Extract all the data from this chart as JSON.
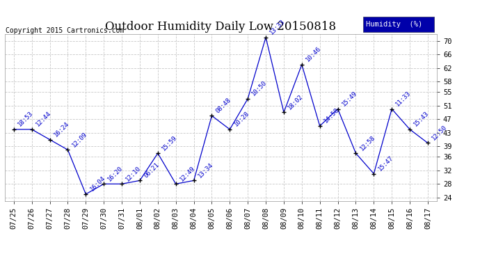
{
  "title": "Outdoor Humidity Daily Low 20150818",
  "copyright": "Copyright 2015 Cartronics.com",
  "legend_label": "Humidity  (%)",
  "ylim": [
    23,
    72
  ],
  "yticks": [
    24,
    28,
    32,
    36,
    39,
    43,
    47,
    51,
    55,
    58,
    62,
    66,
    70
  ],
  "background_color": "#ffffff",
  "grid_color": "#c8c8c8",
  "line_color": "#0000cc",
  "marker_color": "#000000",
  "dates": [
    "07/25",
    "07/26",
    "07/27",
    "07/28",
    "07/29",
    "07/30",
    "07/31",
    "08/01",
    "08/02",
    "08/03",
    "08/04",
    "08/05",
    "08/06",
    "08/07",
    "08/08",
    "08/09",
    "08/10",
    "08/11",
    "08/12",
    "08/13",
    "08/14",
    "08/15",
    "08/16",
    "08/17"
  ],
  "values": [
    44,
    44,
    41,
    38,
    25,
    28,
    28,
    29,
    37,
    28,
    29,
    48,
    44,
    53,
    71,
    49,
    63,
    45,
    50,
    37,
    31,
    50,
    44,
    40
  ],
  "time_labels": [
    "18:53",
    "12:44",
    "16:24",
    "12:09",
    "16:04",
    "16:20",
    "12:10",
    "06:21",
    "15:59",
    "12:49",
    "13:34",
    "08:48",
    "10:28",
    "10:50",
    "13:33",
    "18:02",
    "10:46",
    "14:58",
    "15:49",
    "12:58",
    "15:47",
    "11:33",
    "15:43",
    "12:50"
  ],
  "title_fontsize": 12,
  "tick_fontsize": 7.5,
  "time_label_fontsize": 6.5,
  "legend_bg": "#0000aa",
  "legend_fg": "#ffffff",
  "legend_fontsize": 7.5
}
